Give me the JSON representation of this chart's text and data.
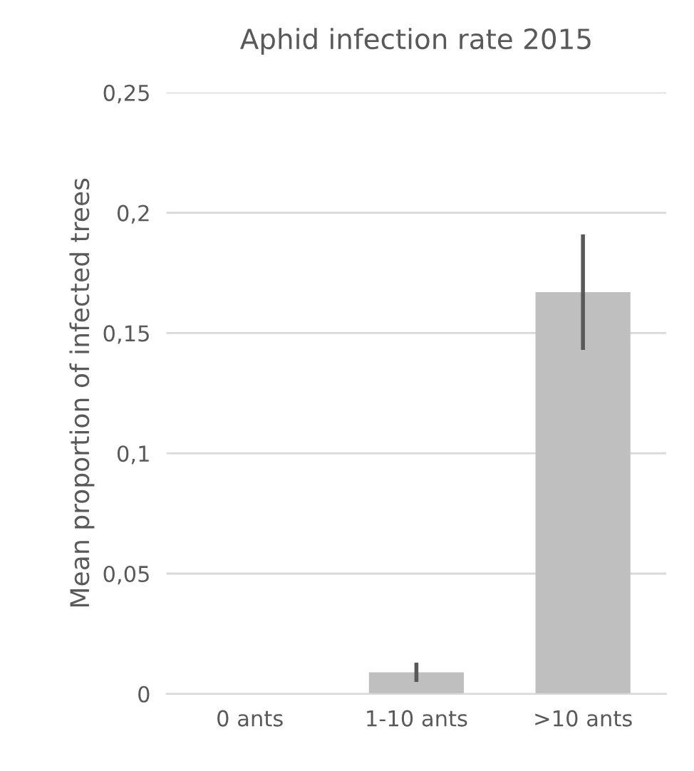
{
  "chart_data": {
    "type": "bar",
    "title": "Aphid infection rate 2015",
    "ylabel": "Mean proportion of infected trees",
    "categories": [
      "0 ants",
      "1-10 ants",
      ">10 ants"
    ],
    "values": [
      0,
      0.009,
      0.167
    ],
    "errors": [
      null,
      0.004,
      0.024
    ],
    "color": "#bfbfbf",
    "ylim": [
      0,
      0.25
    ],
    "yticks": [
      0,
      {
        "value": 0.05,
        "label": "0,05"
      },
      {
        "value": 0.1,
        "label": "0,1"
      },
      {
        "value": 0.15,
        "label": "0,15"
      },
      {
        "value": 0.2,
        "label": "0,2"
      },
      {
        "value": 0.25,
        "label": "0,25"
      }
    ],
    "grid": "y",
    "legend": false
  }
}
